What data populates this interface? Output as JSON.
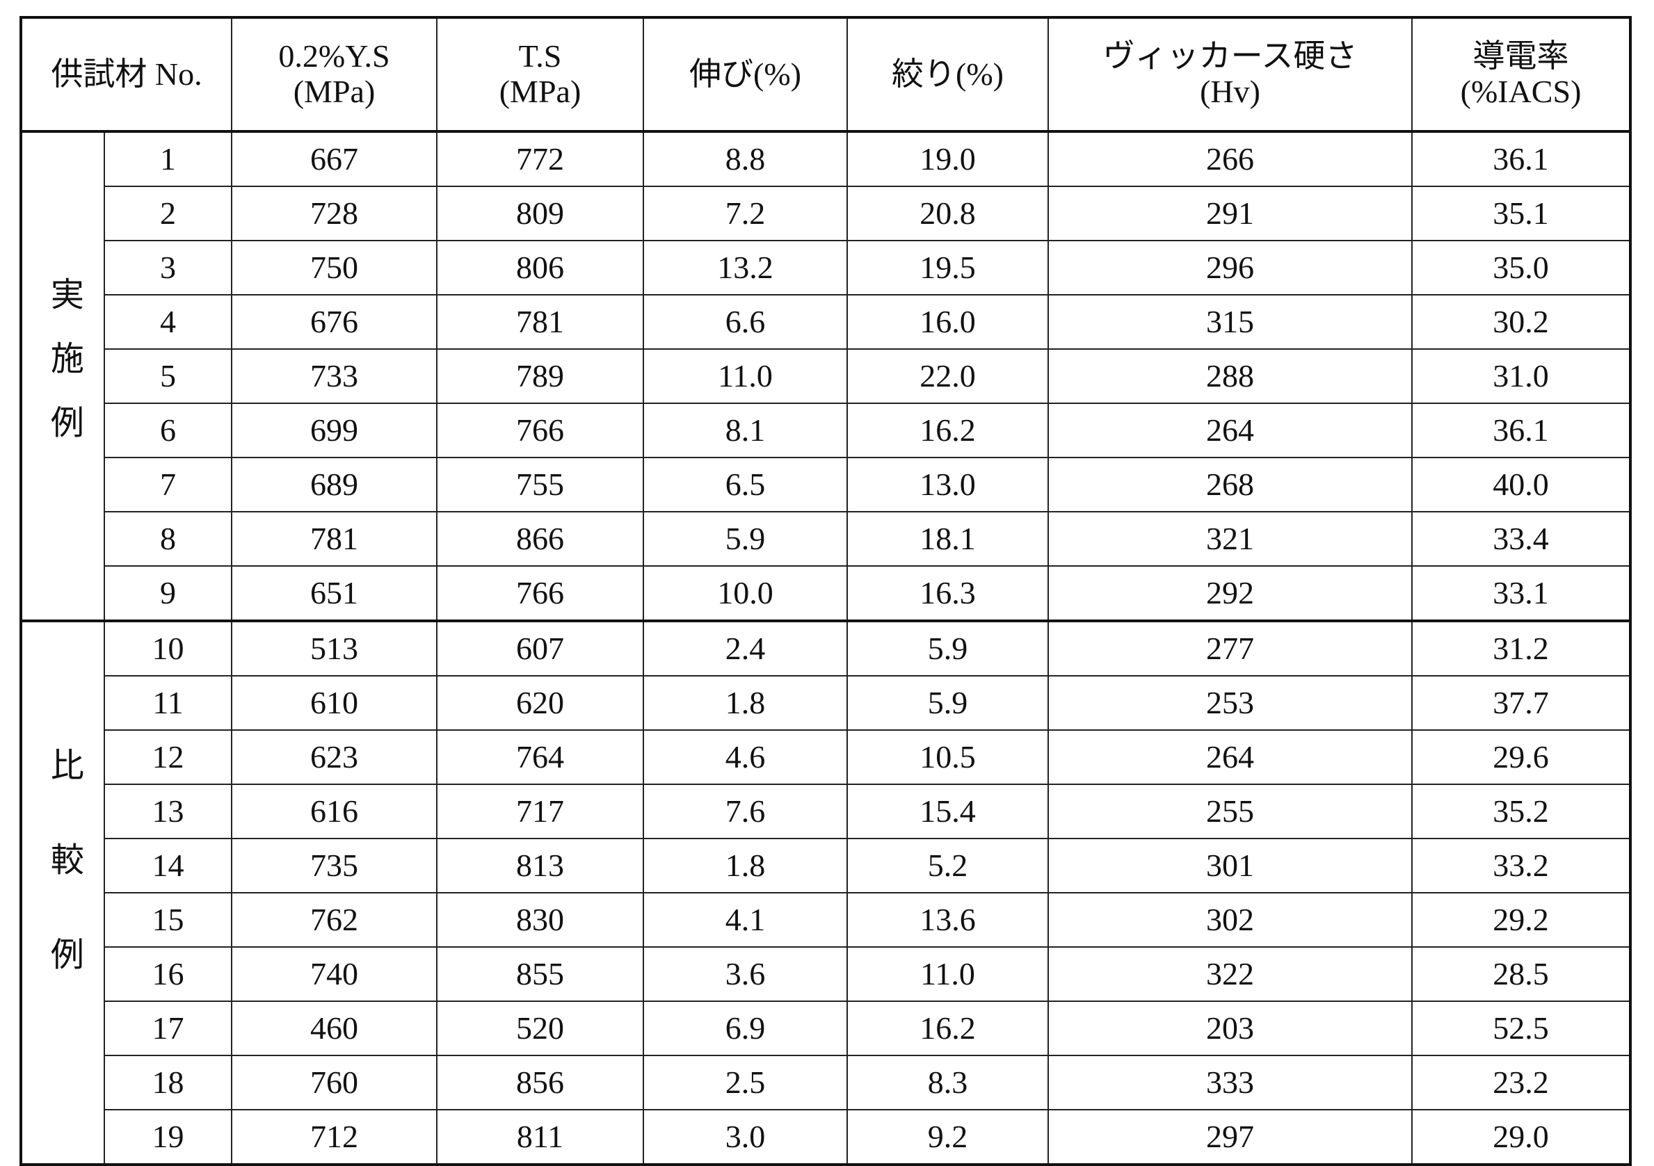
{
  "table": {
    "header": {
      "sample": "供試材 No.",
      "columns": [
        [
          "0.2%Y.S",
          "(MPa)"
        ],
        [
          "T.S",
          "(MPa)"
        ],
        [
          "伸び(%)"
        ],
        [
          "絞り(%)"
        ],
        [
          "ヴィッカース硬さ",
          "(Hv)"
        ],
        [
          "導電率",
          "(%IACS)"
        ]
      ]
    },
    "groups": [
      {
        "label": "実施例",
        "rows": [
          [
            "1",
            "667",
            "772",
            "8.8",
            "19.0",
            "266",
            "36.1"
          ],
          [
            "2",
            "728",
            "809",
            "7.2",
            "20.8",
            "291",
            "35.1"
          ],
          [
            "3",
            "750",
            "806",
            "13.2",
            "19.5",
            "296",
            "35.0"
          ],
          [
            "4",
            "676",
            "781",
            "6.6",
            "16.0",
            "315",
            "30.2"
          ],
          [
            "5",
            "733",
            "789",
            "11.0",
            "22.0",
            "288",
            "31.0"
          ],
          [
            "6",
            "699",
            "766",
            "8.1",
            "16.2",
            "264",
            "36.1"
          ],
          [
            "7",
            "689",
            "755",
            "6.5",
            "13.0",
            "268",
            "40.0"
          ],
          [
            "8",
            "781",
            "866",
            "5.9",
            "18.1",
            "321",
            "33.4"
          ],
          [
            "9",
            "651",
            "766",
            "10.0",
            "16.3",
            "292",
            "33.1"
          ]
        ]
      },
      {
        "label": "比較例",
        "rows": [
          [
            "10",
            "513",
            "607",
            "2.4",
            "5.9",
            "277",
            "31.2"
          ],
          [
            "11",
            "610",
            "620",
            "1.8",
            "5.9",
            "253",
            "37.7"
          ],
          [
            "12",
            "623",
            "764",
            "4.6",
            "10.5",
            "264",
            "29.6"
          ],
          [
            "13",
            "616",
            "717",
            "7.6",
            "15.4",
            "255",
            "35.2"
          ],
          [
            "14",
            "735",
            "813",
            "1.8",
            "5.2",
            "301",
            "33.2"
          ],
          [
            "15",
            "762",
            "830",
            "4.1",
            "13.6",
            "302",
            "29.2"
          ],
          [
            "16",
            "740",
            "855",
            "3.6",
            "11.0",
            "322",
            "28.5"
          ],
          [
            "17",
            "460",
            "520",
            "6.9",
            "16.2",
            "203",
            "52.5"
          ],
          [
            "18",
            "760",
            "856",
            "2.5",
            "8.3",
            "333",
            "23.2"
          ],
          [
            "19",
            "712",
            "811",
            "3.0",
            "9.2",
            "297",
            "29.0"
          ]
        ]
      }
    ]
  }
}
